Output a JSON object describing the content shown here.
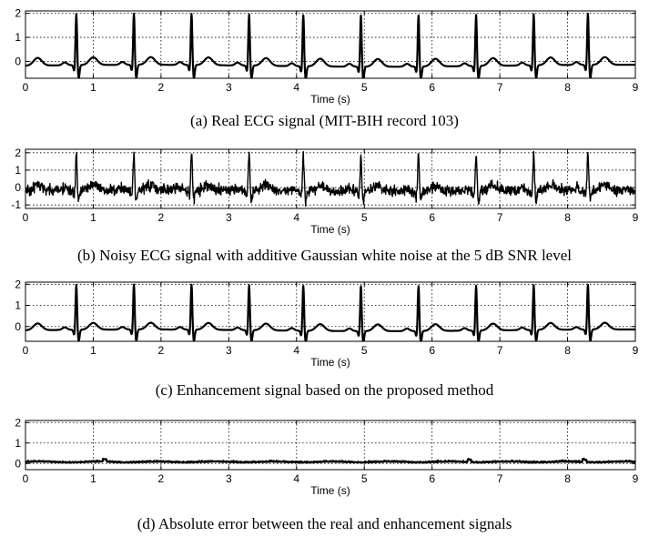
{
  "figure": {
    "chart_data": [
      {
        "type": "line",
        "panel": "a",
        "xlabel": "Time (s)",
        "ylabel": "",
        "xlim": [
          0,
          9
        ],
        "ylim": [
          -0.7,
          2.1
        ],
        "xticks": [
          0,
          1,
          2,
          3,
          4,
          5,
          6,
          7,
          8,
          9
        ],
        "yticks": [
          0,
          1,
          2
        ],
        "grid": true,
        "series": [
          {
            "signal": "ecg",
            "r_peaks": [
              0.75,
              1.6,
              2.45,
              3.3,
              4.1,
              4.95,
              5.8,
              6.65,
              7.5,
              8.3
            ],
            "noise": 0
          }
        ],
        "caption": "(a)  Real ECG signal (MIT-BIH record 103)"
      },
      {
        "type": "line",
        "panel": "b",
        "xlabel": "Time (s)",
        "ylabel": "",
        "xlim": [
          0,
          9
        ],
        "ylim": [
          -1.2,
          2.2
        ],
        "xticks": [
          0,
          1,
          2,
          3,
          4,
          5,
          6,
          7,
          8,
          9
        ],
        "yticks": [
          -1,
          0,
          1,
          2
        ],
        "grid": true,
        "series": [
          {
            "signal": "ecg_noisy",
            "r_peaks": [
              0.75,
              1.6,
              2.45,
              3.3,
              4.1,
              4.95,
              5.8,
              6.65,
              7.5,
              8.3
            ],
            "noise": 0.28
          }
        ],
        "caption": "(b)  Noisy ECG signal with additive Gaussian white noise at the 5 dB SNR level"
      },
      {
        "type": "line",
        "panel": "c",
        "xlabel": "Time (s)",
        "ylabel": "",
        "xlim": [
          0,
          9
        ],
        "ylim": [
          -0.7,
          2.1
        ],
        "xticks": [
          0,
          1,
          2,
          3,
          4,
          5,
          6,
          7,
          8,
          9
        ],
        "yticks": [
          0,
          1,
          2
        ],
        "grid": true,
        "series": [
          {
            "signal": "ecg",
            "r_peaks": [
              0.75,
              1.6,
              2.45,
              3.3,
              4.1,
              4.95,
              5.8,
              6.65,
              7.5,
              8.3
            ],
            "noise": 0
          }
        ],
        "caption": "(c)  Enhancement signal based on the proposed method"
      },
      {
        "type": "line",
        "panel": "d",
        "xlabel": "Time (s)",
        "ylabel": "",
        "xlim": [
          0,
          9
        ],
        "ylim": [
          -0.3,
          2.1
        ],
        "xticks": [
          0,
          1,
          2,
          3,
          4,
          5,
          6,
          7,
          8,
          9
        ],
        "yticks": [
          0,
          1,
          2
        ],
        "grid": true,
        "series": [
          {
            "signal": "abs_error",
            "level": 0.06,
            "spread": 0.05
          }
        ],
        "caption": "(d)  Absolute error between the real and enhancement signals"
      }
    ]
  }
}
